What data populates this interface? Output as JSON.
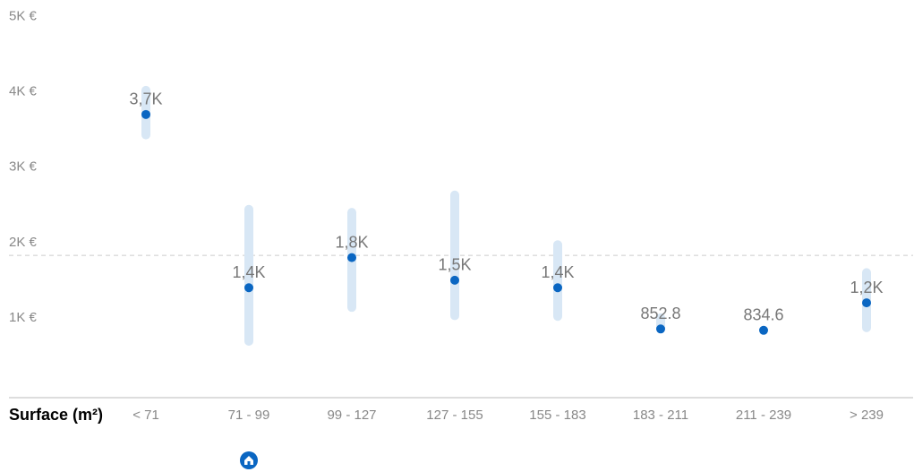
{
  "chart_data": {
    "type": "range-dot",
    "x_label": "Surface (m²)",
    "categories": [
      "< 71",
      "71 - 99",
      "99 - 127",
      "127 - 155",
      "155 - 183",
      "183 - 211",
      "211 - 239",
      "> 239"
    ],
    "values": [
      3700,
      1400,
      1800,
      1500,
      1400,
      852.8,
      834.6,
      1200
    ],
    "value_labels": [
      "3,7K",
      "1,4K",
      "1,8K",
      "1,5K",
      "1,4K",
      "852.8",
      "834.6",
      "1,2K"
    ],
    "low": [
      3370,
      630,
      1080,
      970,
      960,
      800,
      null,
      810
    ],
    "high": [
      4080,
      2500,
      2460,
      2690,
      2030,
      1060,
      null,
      1660
    ],
    "reference_line": 1830,
    "color": "#0a66c2",
    "range_color": "#d8e7f5",
    "ylim": [
      0,
      5000
    ],
    "yticks": [
      {
        "value": 1000,
        "label": "1K €"
      },
      {
        "value": 2000,
        "label": "2K €"
      },
      {
        "value": 3000,
        "label": "3K €"
      },
      {
        "value": 4000,
        "label": "4K €"
      },
      {
        "value": 5000,
        "label": "5K €"
      }
    ]
  }
}
